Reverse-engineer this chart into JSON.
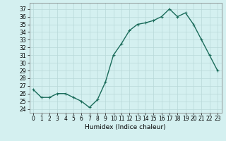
{
  "x": [
    0,
    1,
    2,
    3,
    4,
    5,
    6,
    7,
    8,
    9,
    10,
    11,
    12,
    13,
    14,
    15,
    16,
    17,
    18,
    19,
    20,
    21,
    22,
    23
  ],
  "y": [
    26.5,
    25.5,
    25.5,
    26.0,
    26.0,
    25.5,
    25.0,
    24.2,
    25.2,
    27.5,
    31.0,
    32.5,
    34.2,
    35.0,
    35.2,
    35.5,
    36.0,
    37.0,
    36.0,
    36.5,
    35.0,
    33.0,
    31.0,
    29.0
  ],
  "line_color": "#1a6b5a",
  "marker": "+",
  "marker_size": 3,
  "line_width": 1.0,
  "bg_color": "#d4f0f0",
  "grid_color": "#b8d8d8",
  "xlabel": "Humidex (Indice chaleur)",
  "xlim": [
    -0.5,
    23.5
  ],
  "ylim": [
    23.5,
    37.8
  ],
  "yticks": [
    24,
    25,
    26,
    27,
    28,
    29,
    30,
    31,
    32,
    33,
    34,
    35,
    36,
    37
  ],
  "xticks": [
    0,
    1,
    2,
    3,
    4,
    5,
    6,
    7,
    8,
    9,
    10,
    11,
    12,
    13,
    14,
    15,
    16,
    17,
    18,
    19,
    20,
    21,
    22,
    23
  ],
  "tick_fontsize": 5.5,
  "label_fontsize": 6.5
}
